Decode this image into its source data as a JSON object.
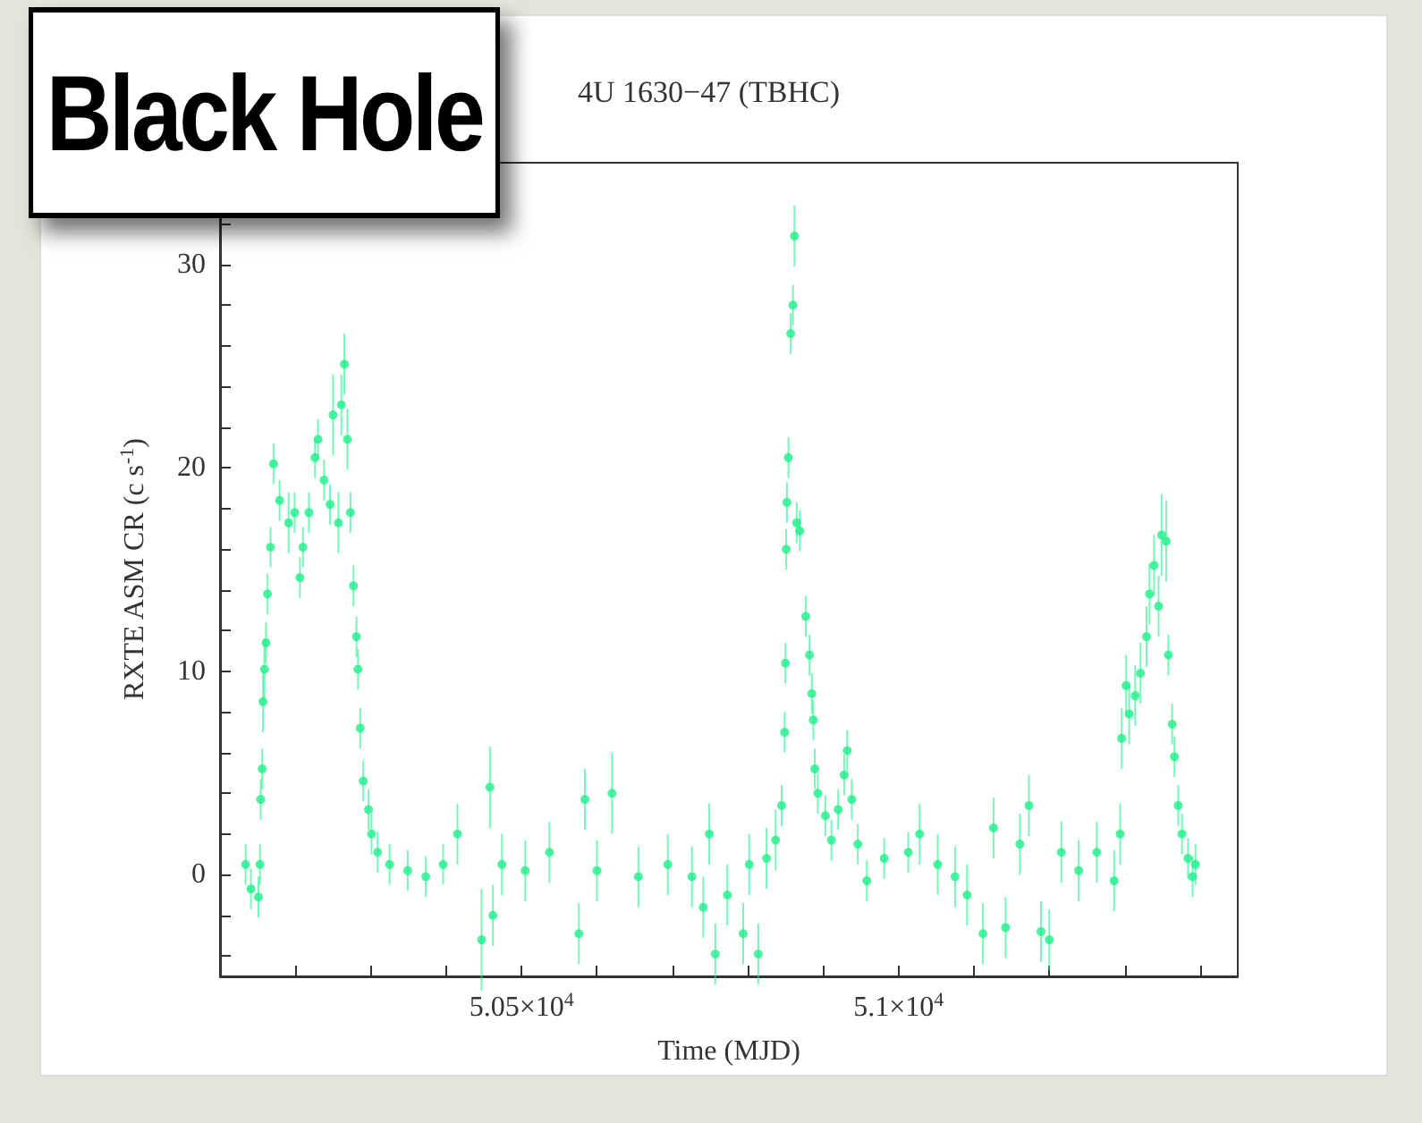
{
  "chart_data": {
    "type": "scatter",
    "title": "4U 1630−47 (TBHC)",
    "xlabel": "Time (MJD)",
    "ylabel": "RXTE ASM CR (c s$^{-1}$)",
    "annotations": [
      "Black Hole"
    ],
    "xlim": [
      50100,
      51450
    ],
    "xticks": [
      {
        "value": 50200,
        "label": null
      },
      {
        "value": 50300,
        "label": null
      },
      {
        "value": 50400,
        "label": null
      },
      {
        "value": 50500,
        "label": "5.05×10$^{4}$"
      },
      {
        "value": 50600,
        "label": null
      },
      {
        "value": 50700,
        "label": null
      },
      {
        "value": 50800,
        "label": null
      },
      {
        "value": 50900,
        "label": null
      },
      {
        "value": 51000,
        "label": "5.1×10$^{4}$"
      },
      {
        "value": 51100,
        "label": null
      },
      {
        "value": 51200,
        "label": null
      },
      {
        "value": 51300,
        "label": null
      },
      {
        "value": 51400,
        "label": null
      }
    ],
    "ylim": [
      -5,
      35
    ],
    "yticks": [
      {
        "value": -4,
        "label": null
      },
      {
        "value": -2,
        "label": null
      },
      0,
      {
        "value": 2,
        "label": null
      },
      {
        "value": 4,
        "label": null
      },
      {
        "value": 6,
        "label": null
      },
      {
        "value": 8,
        "label": null
      },
      10,
      {
        "value": 12,
        "label": null
      },
      {
        "value": 14,
        "label": null
      },
      {
        "value": 16,
        "label": null
      },
      {
        "value": 18,
        "label": null
      },
      20,
      {
        "value": 22,
        "label": null
      },
      {
        "value": 24,
        "label": null
      },
      {
        "value": 26,
        "label": null
      },
      {
        "value": 28,
        "label": null
      },
      30,
      {
        "value": 32,
        "label": null
      },
      {
        "value": 34,
        "label": null
      }
    ],
    "marker": "circle",
    "series": [
      {
        "color": "#1ef08a",
        "x": [
          50134,
          50141,
          50151,
          50153,
          50154,
          50156,
          50157,
          50159,
          50161,
          50163,
          50167,
          50171,
          50179,
          50191,
          50199,
          50206,
          50210,
          50218,
          50226,
          50230,
          50238,
          50246,
          50250,
          50257,
          50261,
          50265,
          50269,
          50273,
          50277,
          50281,
          50283,
          50286,
          50290,
          50297,
          50301,
          50309,
          50325,
          50349,
          50373,
          50396,
          50415,
          50447,
          50458,
          50462,
          50474,
          50505,
          50537,
          50576,
          50584,
          50600,
          50620,
          50655,
          50694,
          50726,
          50741,
          50749,
          50757,
          50773,
          50794,
          50802,
          50814,
          50825,
          50837,
          50845,
          50849,
          50850,
          50851,
          50852,
          50854,
          50857,
          50860,
          50862,
          50865,
          50869,
          50877,
          50882,
          50885,
          50887,
          50889,
          50893,
          50903,
          50911,
          50920,
          50928,
          50932,
          50938,
          50946,
          50958,
          50981,
          51013,
          51028,
          51052,
          51075,
          51091,
          51112,
          51126,
          51142,
          51161,
          51173,
          51189,
          51200,
          51216,
          51239,
          51263,
          51286,
          51294,
          51296,
          51302,
          51306,
          51314,
          51321,
          51329,
          51333,
          51339,
          51345,
          51349,
          51355,
          51358,
          51363,
          51366,
          51371,
          51376,
          51384,
          51390,
          51394
        ],
        "values": [
          0.5,
          -0.7,
          -1.1,
          0.5,
          3.7,
          5.2,
          8.5,
          10.1,
          11.4,
          13.8,
          16.1,
          20.2,
          18.4,
          17.3,
          17.8,
          14.6,
          16.1,
          17.8,
          20.5,
          21.4,
          19.4,
          18.2,
          22.6,
          17.3,
          23.1,
          25.1,
          21.4,
          17.8,
          14.2,
          11.7,
          10.1,
          7.2,
          4.6,
          3.2,
          2.0,
          1.1,
          0.5,
          0.2,
          -0.1,
          0.5,
          2.0,
          -3.2,
          4.3,
          -2.0,
          0.5,
          0.2,
          1.1,
          -2.9,
          3.7,
          0.2,
          4.0,
          -0.1,
          0.5,
          -0.1,
          -1.6,
          2.0,
          -3.9,
          -1.0,
          -2.9,
          0.5,
          -3.9,
          0.8,
          1.7,
          3.4,
          7.0,
          10.4,
          16.0,
          18.3,
          20.5,
          26.6,
          28.0,
          31.4,
          17.3,
          16.9,
          12.7,
          10.8,
          8.9,
          7.6,
          5.2,
          4.0,
          2.9,
          1.7,
          3.2,
          4.9,
          6.1,
          3.7,
          1.5,
          -0.3,
          0.8,
          1.1,
          2.0,
          0.5,
          -0.1,
          -1.0,
          -2.9,
          2.3,
          -2.6,
          1.5,
          3.4,
          -2.8,
          -3.2,
          1.1,
          0.2,
          1.1,
          -0.3,
          2.0,
          6.7,
          9.3,
          7.9,
          8.8,
          9.9,
          11.7,
          13.8,
          15.2,
          13.2,
          16.7,
          16.4,
          10.8,
          7.4,
          5.8,
          3.4,
          2.0,
          0.8,
          -0.1,
          0.5
        ],
        "errors": [
          1,
          1,
          1,
          1,
          1,
          1,
          1.5,
          1.5,
          1,
          1,
          1,
          1,
          1,
          1.5,
          1,
          1,
          1,
          1,
          1,
          1,
          1,
          1,
          2,
          1.5,
          1.5,
          1.5,
          1.5,
          1,
          1,
          1,
          1,
          1,
          1,
          1,
          1,
          1,
          1,
          1,
          1,
          1,
          1.5,
          2.5,
          2,
          1.5,
          1.5,
          1.5,
          1.5,
          1.5,
          1.5,
          1.5,
          2,
          1.5,
          1.5,
          1.5,
          1.5,
          1.5,
          1.5,
          1.5,
          1.5,
          1.5,
          1.5,
          1.5,
          1.5,
          1,
          1,
          1,
          1,
          1,
          1,
          1,
          1,
          1.5,
          1,
          1,
          1,
          1,
          1,
          1,
          1,
          1,
          1,
          1,
          1,
          1,
          1,
          1,
          1,
          1,
          1,
          1,
          1.5,
          1.5,
          1.5,
          1.5,
          1.5,
          1.5,
          1.5,
          1.5,
          1.5,
          1.5,
          1.5,
          1.5,
          1.5,
          1.5,
          1.5,
          1.5,
          1.5,
          1.5,
          1.5,
          1.5,
          1.5,
          1.5,
          1.5,
          1.5,
          1.5,
          2,
          2,
          1,
          1,
          1,
          1,
          1,
          1,
          1,
          1
        ]
      }
    ]
  }
}
